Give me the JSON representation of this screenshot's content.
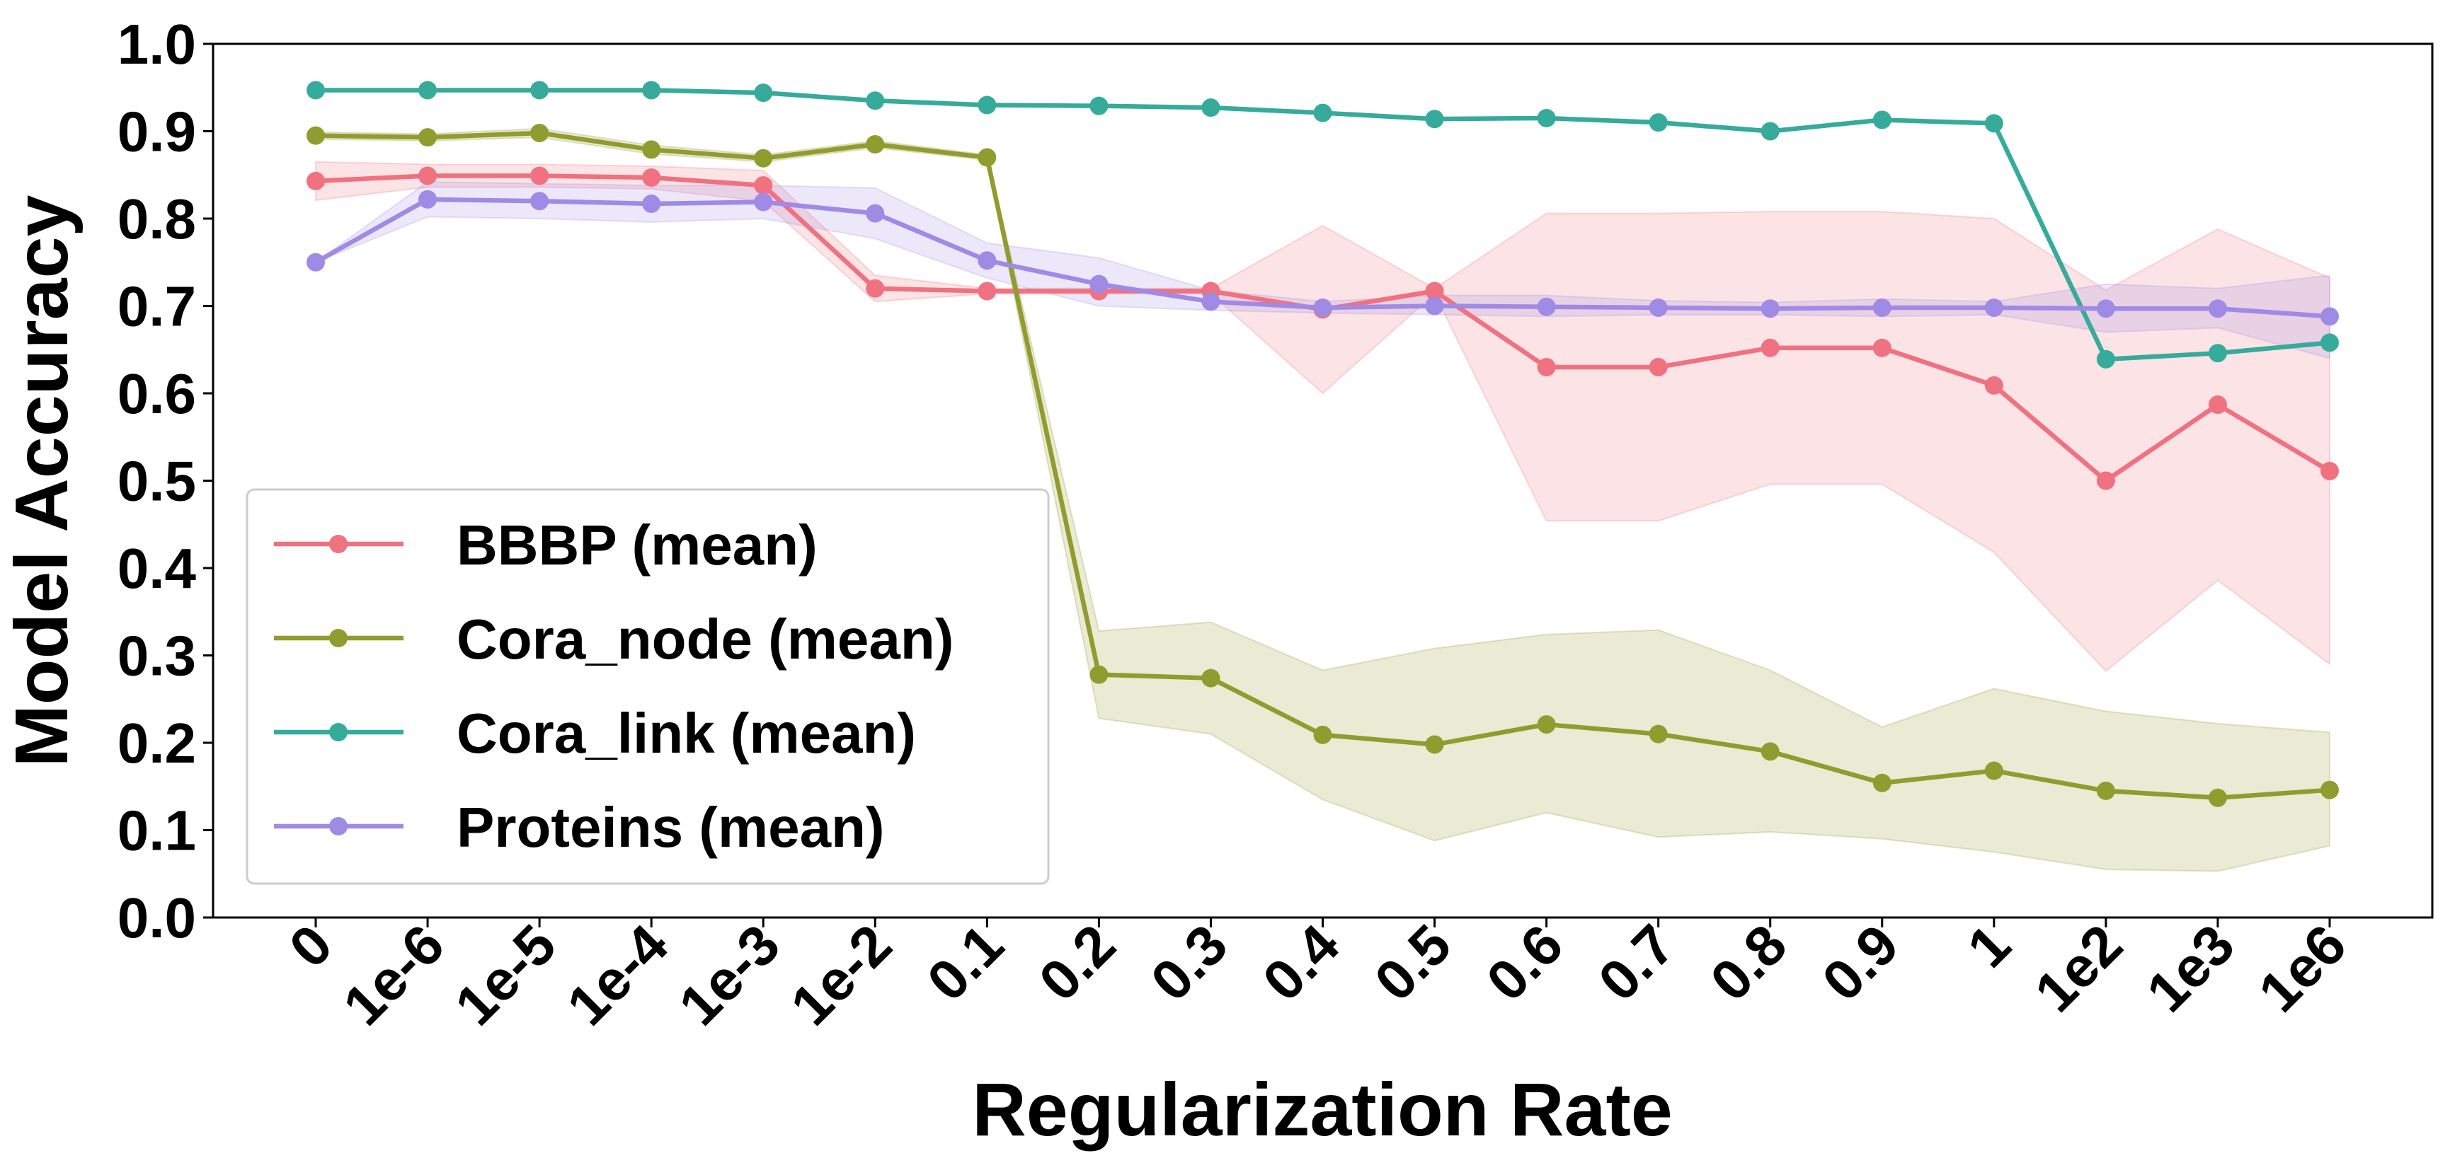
{
  "chart_data": {
    "type": "line",
    "x_label": "Regularization Rate",
    "y_label": "Model Accuracy",
    "categories": [
      "0",
      "1e-6",
      "1e-5",
      "1e-4",
      "1e-3",
      "1e-2",
      "0.1",
      "0.2",
      "0.3",
      "0.4",
      "0.5",
      "0.6",
      "0.7",
      "0.8",
      "0.9",
      "1",
      "1e2",
      "1e3",
      "1e6"
    ],
    "ylim": [
      0,
      1
    ],
    "yticks": [
      {
        "value": 0,
        "label": "0.0"
      },
      0.1,
      0.2,
      0.3,
      0.4,
      0.5,
      0.6,
      0.7,
      0.8,
      0.9,
      {
        "value": 1,
        "label": "1.0"
      }
    ],
    "legend": "lower left",
    "series": [
      {
        "name": "BBBP (mean)",
        "color": "#f0717f",
        "values": [
          0.843,
          0.849,
          0.849,
          0.847,
          0.838,
          0.72,
          0.717,
          0.717,
          0.717,
          0.696,
          0.717,
          0.63,
          0.63,
          0.652,
          0.652,
          0.609,
          0.5,
          0.587,
          0.511
        ],
        "upper": [
          0.865,
          0.862,
          0.862,
          0.86,
          0.855,
          0.735,
          0.72,
          0.72,
          0.72,
          0.792,
          0.72,
          0.806,
          0.806,
          0.808,
          0.808,
          0.8,
          0.718,
          0.788,
          0.732
        ],
        "lower": [
          0.821,
          0.836,
          0.836,
          0.834,
          0.82,
          0.705,
          0.714,
          0.714,
          0.714,
          0.6,
          0.714,
          0.454,
          0.454,
          0.496,
          0.496,
          0.418,
          0.282,
          0.386,
          0.29
        ]
      },
      {
        "name": "Cora_node (mean)",
        "color": "#8f9d2f",
        "values": [
          0.895,
          0.893,
          0.898,
          0.879,
          0.869,
          0.885,
          0.87,
          0.278,
          0.274,
          0.209,
          0.198,
          0.221,
          0.21,
          0.19,
          0.154,
          0.168,
          0.145,
          0.137,
          0.146
        ],
        "upper": [
          0.899,
          0.897,
          0.903,
          0.884,
          0.873,
          0.889,
          0.873,
          0.328,
          0.338,
          0.283,
          0.308,
          0.324,
          0.329,
          0.283,
          0.218,
          0.262,
          0.236,
          0.222,
          0.212
        ],
        "lower": [
          0.891,
          0.889,
          0.893,
          0.874,
          0.865,
          0.881,
          0.867,
          0.228,
          0.21,
          0.135,
          0.088,
          0.12,
          0.092,
          0.098,
          0.09,
          0.075,
          0.055,
          0.053,
          0.082
        ]
      },
      {
        "name": "Cora_link (mean)",
        "color": "#36ab9c",
        "values": [
          0.947,
          0.947,
          0.947,
          0.947,
          0.944,
          0.935,
          0.93,
          0.929,
          0.927,
          0.921,
          0.914,
          0.915,
          0.91,
          0.9,
          0.913,
          0.909,
          0.639,
          0.646,
          0.658
        ]
      },
      {
        "name": "Proteins (mean)",
        "color": "#9f8ae6",
        "values": [
          0.75,
          0.822,
          0.82,
          0.817,
          0.819,
          0.806,
          0.752,
          0.725,
          0.705,
          0.698,
          0.7,
          0.699,
          0.698,
          0.697,
          0.698,
          0.698,
          0.697,
          0.697,
          0.688
        ],
        "upper": [
          0.75,
          0.842,
          0.84,
          0.838,
          0.838,
          0.835,
          0.772,
          0.755,
          0.718,
          0.705,
          0.712,
          0.712,
          0.706,
          0.704,
          0.708,
          0.705,
          0.725,
          0.72,
          0.735
        ],
        "lower": [
          0.75,
          0.802,
          0.8,
          0.796,
          0.8,
          0.777,
          0.732,
          0.7,
          0.695,
          0.692,
          0.69,
          0.688,
          0.69,
          0.69,
          0.688,
          0.69,
          0.67,
          0.675,
          0.64
        ]
      }
    ]
  }
}
